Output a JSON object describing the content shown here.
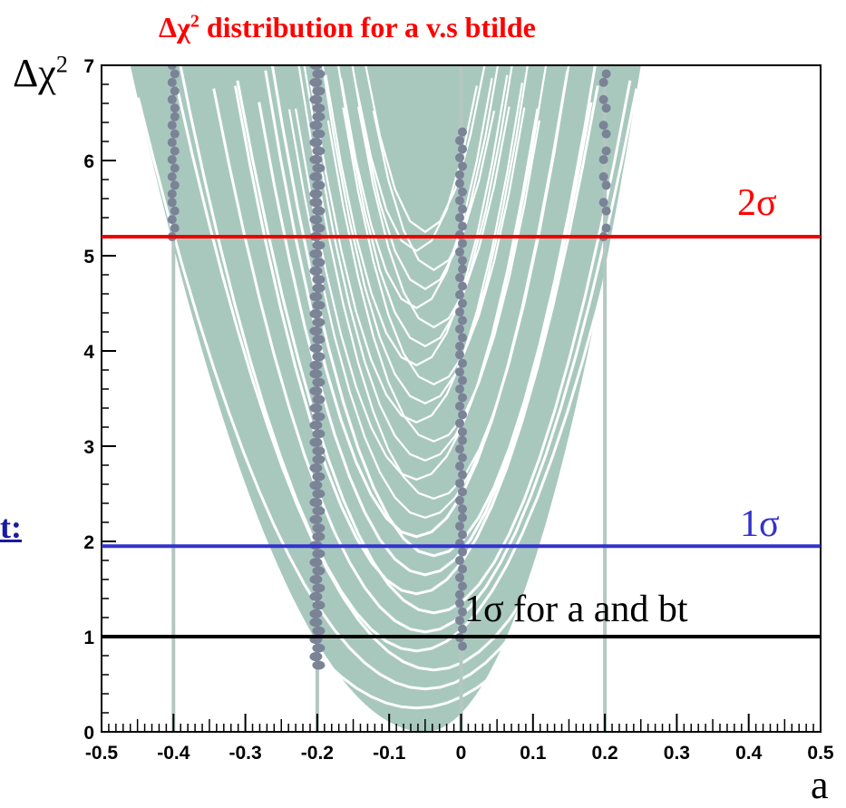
{
  "header": {
    "title_prefix": "Δχ",
    "title_sup": "2",
    "title_rest": " distribution for a v.s btilde",
    "ylabel_base": "Δχ",
    "ylabel_sup": "2",
    "xlabel": "a",
    "edge_text": "t:"
  },
  "chart_data": {
    "type": "scatter",
    "title": "Δχ2 distribution for a v.s btilde",
    "xlabel": "a",
    "ylabel": "Δχ2",
    "xlim": [
      -0.5,
      0.5
    ],
    "ylim": [
      0,
      7
    ],
    "x_ticks": [
      "-0.5",
      "-0.4",
      "-0.3",
      "-0.2",
      "-0.1",
      "0",
      "0.1",
      "0.2",
      "0.3",
      "0.4",
      "0.5"
    ],
    "y_ticks": [
      "0",
      "1",
      "2",
      "3",
      "4",
      "5",
      "6",
      "7"
    ],
    "band": {
      "description_values": "envelope of parabolas",
      "upper_edge": [
        [
          -0.46,
          7
        ],
        [
          -0.3,
          2.8
        ],
        [
          -0.2,
          1.2
        ],
        [
          -0.1,
          0.3
        ],
        [
          -0.05,
          0
        ],
        [
          0.0,
          0.3
        ],
        [
          0.1,
          2.0
        ],
        [
          0.2,
          5.3
        ],
        [
          0.25,
          7
        ]
      ],
      "lower_edge": [
        [
          -0.05,
          0
        ]
      ],
      "min_x": -0.05,
      "left_bound": -0.46,
      "right_bound": 0.25
    },
    "vertical_lines": [
      -0.4,
      -0.2,
      0.0,
      0.2
    ],
    "dot_columns": [
      {
        "x": -0.4,
        "ymin": 5.2,
        "ymax": 7.0
      },
      {
        "x": -0.2,
        "ymin": 0.7,
        "ymax": 7.0
      },
      {
        "x": 0.0,
        "ymin": 0.9,
        "ymax": 6.3
      },
      {
        "x": 0.2,
        "ymin": 5.2,
        "ymax": 7.0
      }
    ],
    "hlines": [
      {
        "y": 5.2,
        "label": "2σ",
        "color": "#ee0000"
      },
      {
        "y": 1.95,
        "label": "1σ",
        "color": "#3333cc"
      },
      {
        "y": 1.0,
        "label": "1σ for a and bt",
        "color": "#000000"
      }
    ],
    "colors": {
      "band": "#a8c8be",
      "dots": "#7b8397",
      "vlines": "#b4c8c2"
    }
  }
}
